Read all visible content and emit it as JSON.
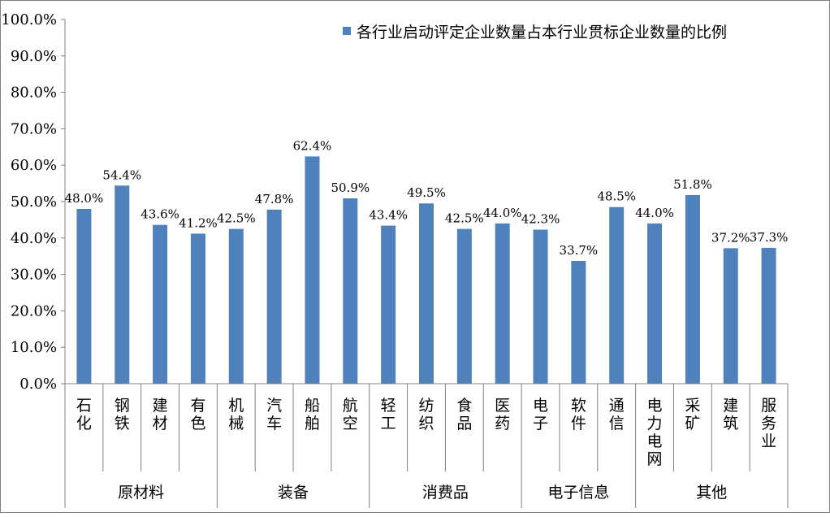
{
  "chart_data": {
    "type": "bar",
    "title": "",
    "xlabel": "",
    "ylabel": "",
    "ylim": [
      0,
      100
    ],
    "y_ticks": [
      "0.0%",
      "10.0%",
      "20.0%",
      "30.0%",
      "40.0%",
      "50.0%",
      "60.0%",
      "70.0%",
      "80.0%",
      "90.0%",
      "100.0%"
    ],
    "categories": [
      "石化",
      "钢铁",
      "建材",
      "有色",
      "机械",
      "汽车",
      "船舶",
      "航空",
      "轻工",
      "纺织",
      "食品",
      "医药",
      "电子",
      "软件",
      "通信",
      "电力电网",
      "采矿",
      "建筑",
      "服务业"
    ],
    "groups": [
      {
        "name": "原材料",
        "count": 4
      },
      {
        "name": "装备",
        "count": 4
      },
      {
        "name": "消费品",
        "count": 4
      },
      {
        "name": "电子信息",
        "count": 3
      },
      {
        "name": "其他",
        "count": 4
      }
    ],
    "series": [
      {
        "name": "各行业启动评定企业数量占本行业贯标企业数量的比例",
        "values": [
          48.0,
          54.4,
          43.6,
          41.2,
          42.5,
          47.8,
          62.4,
          50.9,
          43.4,
          49.5,
          42.5,
          44.0,
          42.3,
          33.7,
          48.5,
          44.0,
          51.8,
          37.2,
          37.3
        ],
        "labels": [
          "48.0%",
          "54.4%",
          "43.6%",
          "41.2%",
          "42.5%",
          "47.8%",
          "62.4%",
          "50.9%",
          "43.4%",
          "49.5%",
          "42.5%",
          "44.0%",
          "42.3%",
          "33.7%",
          "48.5%",
          "44.0%",
          "51.8%",
          "37.2%",
          "37.3%"
        ]
      }
    ],
    "legend": "top-right",
    "grid": false,
    "colors": {
      "bar": "#4F81BD",
      "axis": "#808080"
    }
  }
}
